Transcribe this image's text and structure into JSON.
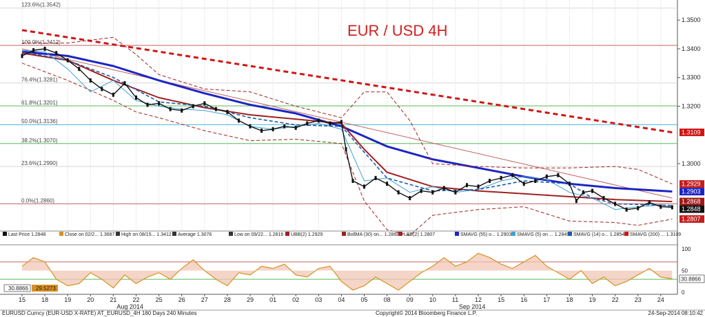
{
  "chart_data": {
    "type": "line",
    "title": "EUR / USD 4H",
    "instrument": "EURUSD Curncy (EUR-USD X-RATE) AT_EURUSD_4H 180 Days 240 Minutes",
    "copyright": "Copyright© 2014 Bloomberg Finance L.P.",
    "timestamp": "24-Sep-2014 08:10:42",
    "x_ticks": [
      "15",
      "18",
      "19",
      "20",
      "21",
      "22",
      "25",
      "26",
      "27",
      "28",
      "29",
      "01",
      "02",
      "03",
      "04",
      "05",
      "08",
      "09",
      "10",
      "11",
      "12",
      "15",
      "16",
      "17",
      "18",
      "19",
      "22",
      "23",
      "24"
    ],
    "month_labels": [
      {
        "text": "Aug 2014",
        "after_tick": 4
      },
      {
        "text": "Sep 2014",
        "after_tick": 19
      }
    ],
    "y_ticks": [
      "1.3500",
      "1.3400",
      "1.3300",
      "1.3200",
      "1.3000"
    ],
    "y_tick_values": [
      1.35,
      1.34,
      1.33,
      1.32,
      1.3
    ],
    "ylim": [
      1.277,
      1.357
    ],
    "fib_levels": [
      {
        "label": "123.6%(1.3542)",
        "value": 1.3542,
        "color": "#d7d7d7"
      },
      {
        "label": "100.0%(1.3412)",
        "value": 1.3412,
        "color": "#c06060"
      },
      {
        "label": "76.4%(1.3281)",
        "value": 1.3281,
        "color": "#d7d7d7"
      },
      {
        "label": "61.8%(1.3201)",
        "value": 1.3201,
        "color": "#55bb55"
      },
      {
        "label": "50.0%(1.3136)",
        "value": 1.3136,
        "color": "#3fb4d8"
      },
      {
        "label": "38.2%(1.3070)",
        "value": 1.307,
        "color": "#55bb55"
      },
      {
        "label": "23.6%(1.2990)",
        "value": 1.299,
        "color": "#d7d7d7"
      },
      {
        "label": "0.0%(1.2860)",
        "value": 1.286,
        "color": "#c06060"
      }
    ],
    "price_tags": [
      {
        "text": "1.3109",
        "value": 1.3109,
        "color": "#d01515"
      },
      {
        "text": "1.2929",
        "value": 1.2929,
        "color": "#c41d1d"
      },
      {
        "text": "1.2903",
        "value": 1.2903,
        "color": "#1c24c4"
      },
      {
        "text": "1.2868",
        "value": 1.2868,
        "color": "#a01818"
      },
      {
        "text": "1.2848",
        "value": 1.2848,
        "color": "#111111"
      },
      {
        "text": "1.2807",
        "value": 1.2807,
        "color": "#c41d1d"
      }
    ],
    "legend": [
      {
        "text": "Last Price  1.2848",
        "color": "#111111"
      },
      {
        "text": "Close on 02/2...  1.3687",
        "color": "#d89020"
      },
      {
        "text": "High on 08/15...  1.3412",
        "color": "#333333"
      },
      {
        "text": "Average  1.3076",
        "color": "#333333"
      },
      {
        "text": "Low on 09/22...  1.2816",
        "color": "#333333"
      },
      {
        "text": "UBB(2)  1.2929",
        "color": "#a02020"
      },
      {
        "text": "BollMA (30) on...  1.2868",
        "color": "#a02020"
      },
      {
        "text": "LBB(2)  1.2807",
        "color": "#a02020"
      },
      {
        "text": "SMAVG (55) o...  1.2903",
        "color": "#1c24c4"
      },
      {
        "text": "SMAVG (5) on ...  1.2849",
        "color": "#3fa0d8"
      },
      {
        "text": "SMAVG (14) o...  1.2854",
        "color": "#1d5ba8"
      },
      {
        "text": "SMAVG (200) ...  1.3109",
        "color": "#d01515"
      }
    ],
    "series": [
      {
        "name": "SMAVG (200)",
        "color": "#d01515",
        "x": [
          0,
          28.5
        ],
        "y": [
          1.3465,
          1.3109
        ]
      },
      {
        "name": "Trend line",
        "color": "#c06060",
        "x": [
          0,
          28.5
        ],
        "y": [
          1.34,
          1.288
        ]
      },
      {
        "name": "SMAVG (55)",
        "color": "#1c24c4",
        "x": [
          0,
          2,
          4,
          6,
          8,
          10,
          12,
          14,
          15,
          16,
          18,
          20,
          22,
          24,
          26,
          28.5
        ],
        "y": [
          1.339,
          1.3375,
          1.334,
          1.329,
          1.3245,
          1.3205,
          1.3175,
          1.313,
          1.3095,
          1.306,
          1.3015,
          1.2985,
          1.2955,
          1.293,
          1.2915,
          1.2903
        ]
      },
      {
        "name": "BollMA (30)",
        "color": "#a02020",
        "x": [
          0,
          2,
          4,
          6,
          8,
          10,
          12,
          14,
          15,
          16,
          18,
          20,
          22,
          24,
          26,
          28.5
        ],
        "y": [
          1.3385,
          1.336,
          1.329,
          1.323,
          1.3195,
          1.317,
          1.3155,
          1.314,
          1.305,
          1.297,
          1.292,
          1.2905,
          1.2895,
          1.2885,
          1.2875,
          1.2868
        ]
      },
      {
        "name": "UBB(2)",
        "color": "#a02020",
        "x": [
          0,
          2,
          4,
          5,
          6,
          8,
          10,
          12,
          14,
          15,
          16,
          17,
          18,
          20,
          22,
          24,
          26,
          27,
          28.5
        ],
        "y": [
          1.342,
          1.342,
          1.344,
          1.338,
          1.331,
          1.326,
          1.325,
          1.32,
          1.316,
          1.325,
          1.325,
          1.315,
          1.3,
          1.299,
          1.2985,
          1.2985,
          1.299,
          1.298,
          1.2929
        ]
      },
      {
        "name": "LBB(2)",
        "color": "#a02020",
        "x": [
          0,
          2,
          4,
          5,
          6,
          8,
          10,
          12,
          14,
          15,
          16,
          17,
          18,
          20,
          22,
          24,
          26,
          27,
          28.5
        ],
        "y": [
          1.335,
          1.329,
          1.322,
          1.318,
          1.316,
          1.3115,
          1.308,
          1.3085,
          1.307,
          1.287,
          1.277,
          1.275,
          1.282,
          1.284,
          1.285,
          1.28,
          1.2795,
          1.2785,
          1.2807
        ]
      },
      {
        "name": "SMAVG (5)",
        "color": "#3fa0d8",
        "x": [
          0,
          1,
          2,
          3,
          4,
          5,
          6,
          7,
          8,
          9,
          10,
          11,
          12,
          13,
          14,
          15,
          16,
          17,
          18,
          19,
          20,
          21,
          22,
          23,
          24,
          25,
          26,
          27,
          28,
          28.5
        ],
        "y": [
          1.3395,
          1.339,
          1.333,
          1.325,
          1.329,
          1.322,
          1.32,
          1.319,
          1.3185,
          1.317,
          1.313,
          1.312,
          1.313,
          1.314,
          1.312,
          1.294,
          1.295,
          1.29,
          1.292,
          1.29,
          1.291,
          1.294,
          1.2955,
          1.2945,
          1.29,
          1.288,
          1.284,
          1.285,
          1.2855,
          1.2849
        ]
      },
      {
        "name": "SMAVG (14)",
        "color": "#1d5ba8",
        "x": [
          0,
          2,
          4,
          6,
          8,
          10,
          12,
          14,
          15,
          16,
          18,
          20,
          22,
          24,
          25,
          26,
          27,
          28.5
        ],
        "y": [
          1.339,
          1.336,
          1.33,
          1.3215,
          1.32,
          1.316,
          1.3135,
          1.313,
          1.304,
          1.295,
          1.2905,
          1.291,
          1.294,
          1.293,
          1.288,
          1.286,
          1.2858,
          1.2854
        ]
      },
      {
        "name": "Last Price",
        "color": "#111111",
        "x": [
          0,
          0.5,
          1,
          1.5,
          2,
          2.5,
          3,
          3.5,
          4,
          4.5,
          5,
          5.5,
          6,
          6.5,
          7,
          7.5,
          8,
          8.5,
          9,
          9.5,
          10,
          10.5,
          11,
          11.5,
          12,
          12.5,
          13,
          13.5,
          14,
          14.2,
          14.5,
          15,
          15.5,
          16,
          16.5,
          17,
          17.5,
          18,
          18.5,
          19,
          19.5,
          20,
          20.5,
          21,
          21.5,
          22,
          22.5,
          23,
          23.5,
          24,
          24.3,
          24.6,
          25,
          25.5,
          26,
          26.5,
          27,
          27.5,
          28,
          28.5
        ],
        "y": [
          1.3375,
          1.3395,
          1.34,
          1.3385,
          1.336,
          1.333,
          1.329,
          1.326,
          1.324,
          1.328,
          1.323,
          1.3205,
          1.321,
          1.319,
          1.3185,
          1.32,
          1.321,
          1.319,
          1.318,
          1.315,
          1.313,
          1.3115,
          1.312,
          1.313,
          1.3125,
          1.314,
          1.315,
          1.314,
          1.3145,
          1.305,
          1.294,
          1.292,
          1.295,
          1.293,
          1.29,
          1.288,
          1.2905,
          1.29,
          1.2915,
          1.29,
          1.2925,
          1.292,
          1.294,
          1.295,
          1.296,
          1.293,
          1.294,
          1.2955,
          1.296,
          1.293,
          1.287,
          1.29,
          1.2905,
          1.288,
          1.286,
          1.284,
          1.2845,
          1.2865,
          1.285,
          1.2848
        ]
      }
    ],
    "oscillator": {
      "y_ticks": [
        "100",
        "50",
        "0"
      ],
      "labels": [
        {
          "text": "30.8866",
          "color": "#222222"
        },
        {
          "text": "29.5273",
          "color": "#d89020"
        }
      ],
      "right_label": "30.8866",
      "lines": [
        70,
        30
      ],
      "stoch": {
        "x": [
          0,
          0.5,
          1,
          1.5,
          2,
          2.5,
          3,
          3.5,
          4,
          4.5,
          5,
          5.5,
          6,
          6.5,
          7,
          7.5,
          8,
          8.5,
          9,
          9.5,
          10,
          10.5,
          11,
          11.5,
          12,
          12.5,
          13,
          13.5,
          14,
          14.5,
          15,
          15.5,
          16,
          16.5,
          17,
          17.5,
          18,
          18.5,
          19,
          19.5,
          20,
          20.5,
          21,
          21.5,
          22,
          22.5,
          23,
          23.5,
          24,
          24.5,
          25,
          25.5,
          26,
          26.5,
          27,
          27.5,
          28,
          28.5
        ],
        "y": [
          60,
          80,
          70,
          30,
          15,
          20,
          45,
          30,
          10,
          40,
          20,
          35,
          45,
          30,
          55,
          75,
          50,
          30,
          15,
          45,
          40,
          60,
          55,
          65,
          40,
          35,
          55,
          60,
          25,
          5,
          15,
          35,
          20,
          5,
          25,
          45,
          60,
          80,
          60,
          70,
          90,
          80,
          65,
          55,
          70,
          85,
          60,
          45,
          30,
          50,
          20,
          35,
          15,
          25,
          40,
          55,
          35,
          31
        ]
      }
    }
  }
}
